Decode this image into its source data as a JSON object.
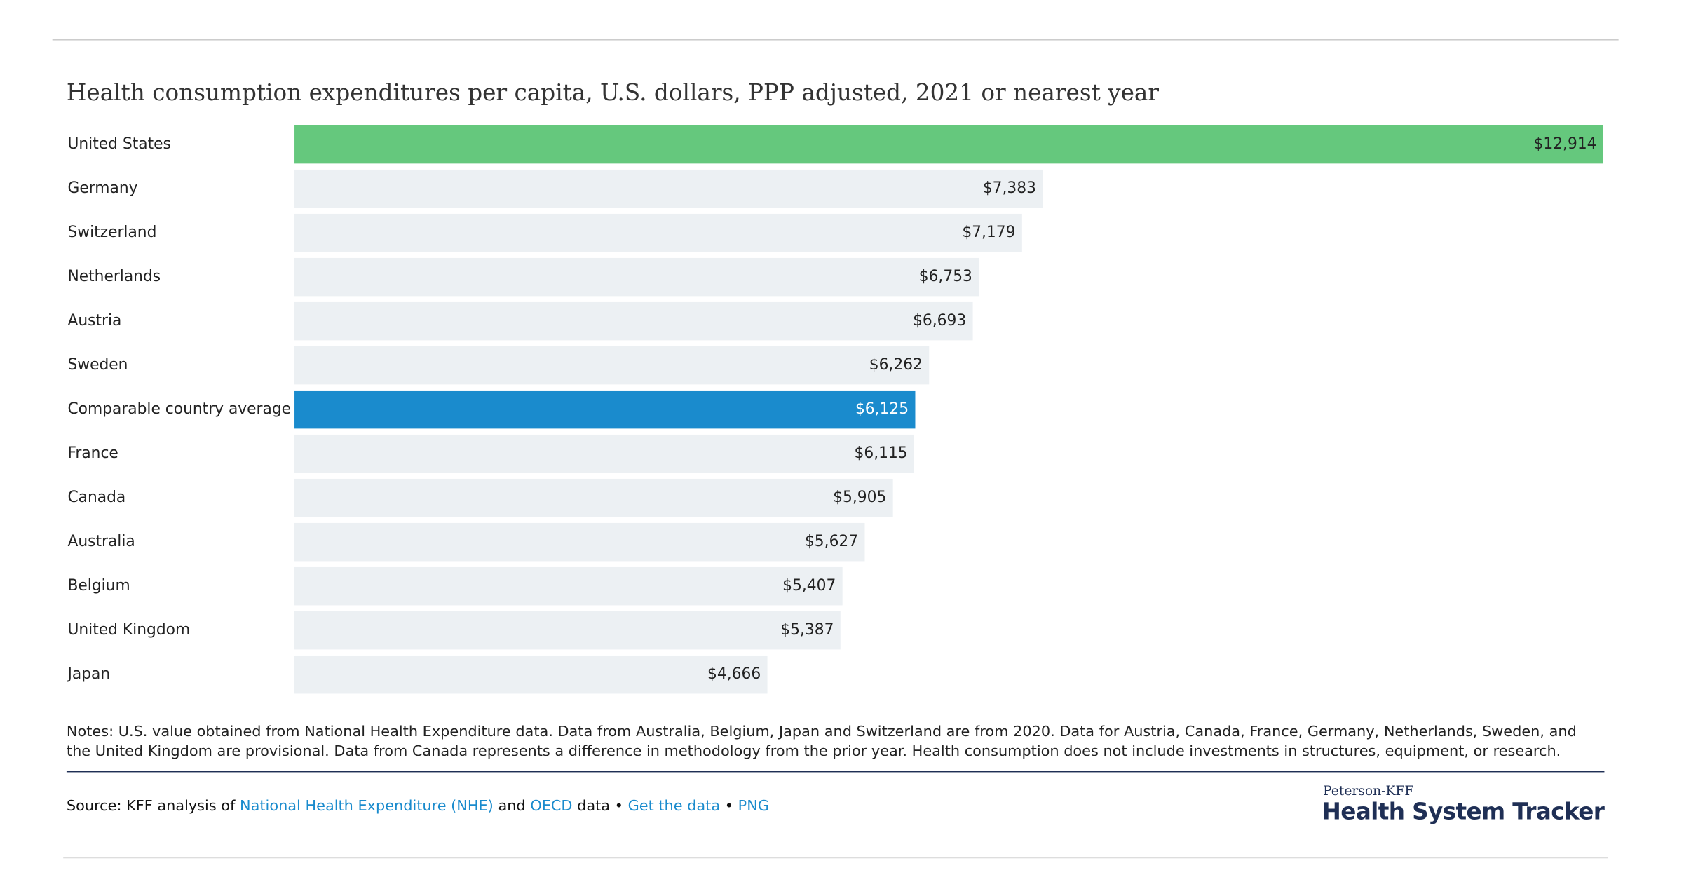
{
  "chart_data": {
    "type": "hbar",
    "title": "Health consumption expenditures per capita, U.S. dollars, PPP adjusted, 2021 or nearest year",
    "categories": [
      "United States",
      "Germany",
      "Switzerland",
      "Netherlands",
      "Austria",
      "Sweden",
      "Comparable country average",
      "France",
      "Canada",
      "Australia",
      "Belgium",
      "United Kingdom",
      "Japan"
    ],
    "values": [
      12914,
      7383,
      7179,
      6753,
      6693,
      6262,
      6125,
      6115,
      5905,
      5627,
      5407,
      5387,
      4666
    ],
    "value_labels": [
      "$12,914",
      "$7,383",
      "$7,179",
      "$6,753",
      "$6,693",
      "$6,262",
      "$6,125",
      "$6,115",
      "$5,905",
      "$5,627",
      "$5,407",
      "$5,387",
      "$4,666"
    ],
    "colors": [
      "#65c87d",
      "#ecf0f3",
      "#ecf0f3",
      "#ecf0f3",
      "#ecf0f3",
      "#ecf0f3",
      "#1a8bcd",
      "#ecf0f3",
      "#ecf0f3",
      "#ecf0f3",
      "#ecf0f3",
      "#ecf0f3",
      "#ecf0f3"
    ],
    "notes": "Notes: U.S. value obtained from National Health Expenditure data. Data from Australia, Belgium, Japan and Switzerland are from 2020. Data for Austria, Canada, France, Germany, Netherlands, Sweden, and the United Kingdom are provisional. Data from Canada represents a difference in methodology from the prior year. Health consumption does not include investments in structures, equipment, or research.",
    "source": {
      "prefix": "Source: KFF analysis of",
      "link1": "National Health Expenditure (NHE)",
      "and": "and",
      "link2": "OECD",
      "data": "data",
      "sep1": "•",
      "link3": "Get the data",
      "sep2": "•",
      "link4": "PNG"
    },
    "logo": {
      "small": "Peterson-KFF",
      "big": "Health System Tracker"
    }
  }
}
